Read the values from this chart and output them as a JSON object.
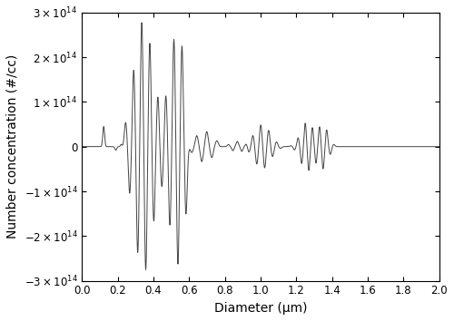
{
  "xlabel": "Diameter (μm)",
  "ylabel": "Number concentration (#/cc)",
  "xlim": [
    0.0,
    2.0
  ],
  "ylim": [
    -300000000000000.0,
    300000000000000.0
  ],
  "xticks": [
    0.0,
    0.2,
    0.4,
    0.6,
    0.8,
    1.0,
    1.2,
    1.4,
    1.6,
    1.8,
    2.0
  ],
  "ytick_vals": [
    -300000000000000.0,
    -200000000000000.0,
    -100000000000000.0,
    0,
    100000000000000.0,
    200000000000000.0,
    300000000000000.0
  ],
  "ytick_labels": [
    "-3×10¹⁴",
    "-2×10¹⁴",
    "-1×10¹⁴",
    "0",
    "1×10¹⁴",
    "2×10¹⁴",
    "3×10¹⁴"
  ],
  "line_color": "#444444",
  "line_width": 0.7,
  "figsize": [
    5.0,
    3.54
  ],
  "dpi": 100
}
